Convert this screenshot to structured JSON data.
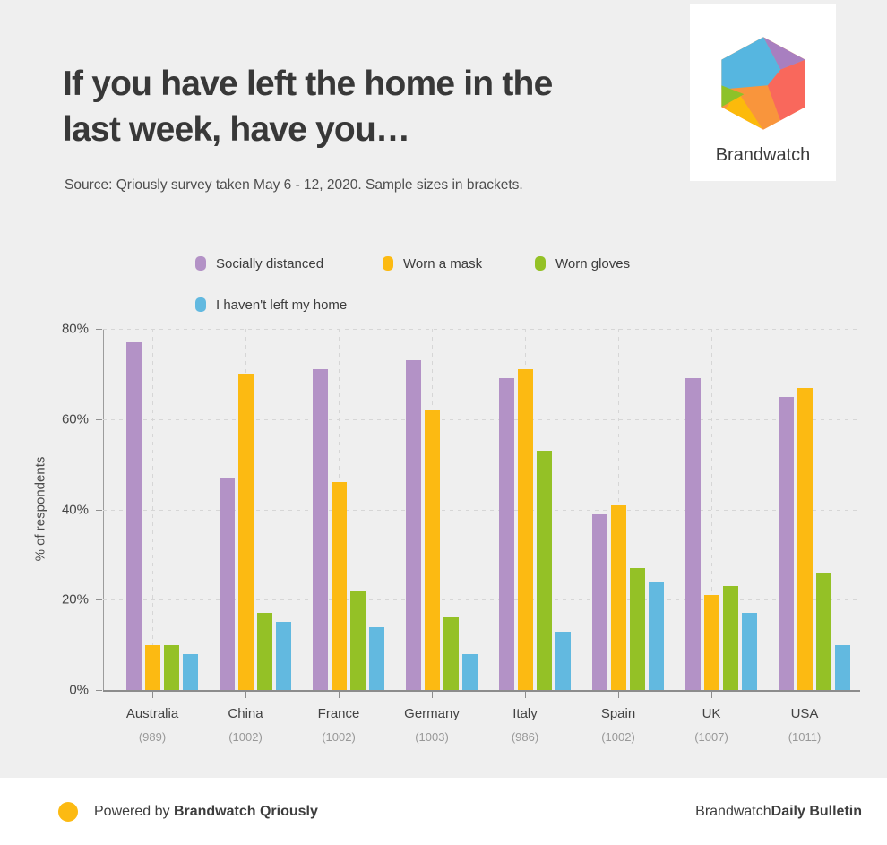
{
  "header": {
    "title_line1": "If you have left the home in the",
    "title_line2": "last week, have you…",
    "source": "Source: Qriously survey taken May 6 - 12, 2020. Sample sizes in brackets.",
    "logo_text": "Brandwatch"
  },
  "legend": [
    {
      "label": "Socially distanced",
      "color": "#b392c6"
    },
    {
      "label": "Worn a mask",
      "color": "#fcba12"
    },
    {
      "label": "Worn gloves",
      "color": "#94c126"
    },
    {
      "label": "I haven't left my home",
      "color": "#62b9e0"
    }
  ],
  "chart_data": {
    "type": "bar",
    "title": "If you have left the home in the last week, have you…",
    "xlabel": "",
    "ylabel": "% of respondents",
    "ylim": [
      0,
      80
    ],
    "yticks": [
      "80%",
      "60%",
      "40%",
      "20%",
      "0%"
    ],
    "grid": "dashed",
    "legend_position": "top",
    "categories": [
      "Australia",
      "China",
      "France",
      "Germany",
      "Italy",
      "Spain",
      "UK",
      "USA"
    ],
    "sample_sizes": [
      "(989)",
      "(1002)",
      "(1002)",
      "(1003)",
      "(986)",
      "(1002)",
      "(1007)",
      "(1011)"
    ],
    "series": [
      {
        "name": "Socially distanced",
        "color": "#b392c6",
        "values": [
          77,
          47,
          71,
          73,
          69,
          39,
          69,
          65
        ]
      },
      {
        "name": "Worn a mask",
        "color": "#fcba12",
        "values": [
          10,
          70,
          46,
          62,
          71,
          41,
          21,
          67
        ]
      },
      {
        "name": "Worn gloves",
        "color": "#94c126",
        "values": [
          10,
          17,
          22,
          16,
          53,
          27,
          23,
          26
        ]
      },
      {
        "name": "I haven't left my home",
        "color": "#62b9e0",
        "values": [
          8,
          15,
          14,
          8,
          13,
          24,
          17,
          10
        ]
      }
    ]
  },
  "footer": {
    "powered_by_prefix": "Powered by ",
    "powered_by_bold": "Brandwatch Qriously",
    "right_prefix": "Brandwatch ",
    "right_bold": "Daily Bulletin",
    "dot_color": "#fcba12"
  },
  "colors": {
    "background": "#efefef",
    "axis": "#8c8c8c",
    "gridline": "#d6d6d6"
  }
}
